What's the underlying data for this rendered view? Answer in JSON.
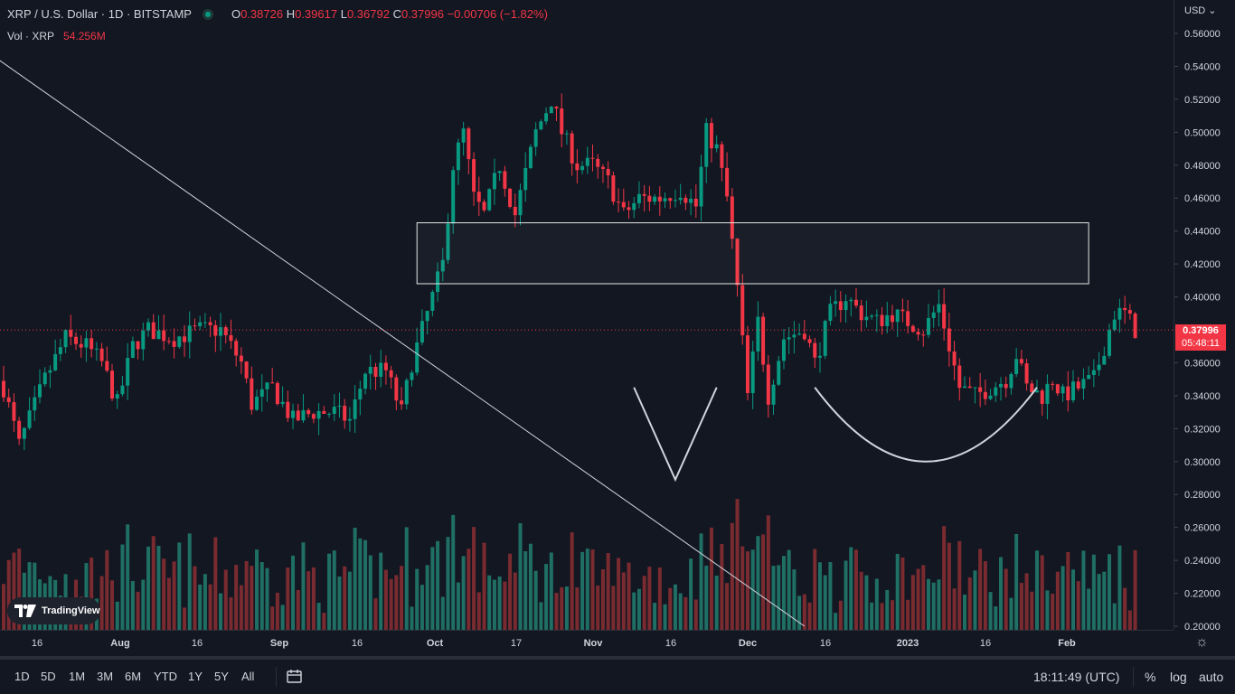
{
  "header": {
    "symbol": "XRP / U.S. Dollar · 1D · BITSTAMP",
    "o_label": "O",
    "o_value": "0.38726",
    "h_label": "H",
    "h_value": "0.39617",
    "l_label": "L",
    "l_value": "0.36792",
    "c_label": "C",
    "c_value": "0.37996",
    "change": "−0.00706 (−1.82%)"
  },
  "volume_legend": {
    "label": "Vol · XRP",
    "value": "54.256M"
  },
  "currency": "USD",
  "last_price": {
    "value": "0.37996",
    "countdown": "05:48:11"
  },
  "logo_text": "TradingView",
  "timeframes": [
    "1D",
    "5D",
    "1M",
    "3M",
    "6M",
    "YTD",
    "1Y",
    "5Y",
    "All"
  ],
  "clock": "18:11:49 (UTC)",
  "toolbar_right": {
    "percent": "%",
    "log": "log",
    "auto": "auto"
  },
  "colors": {
    "up": "#089981",
    "down": "#f23645",
    "up_vol": "#1f6f64",
    "down_vol": "#7a2b30",
    "background": "#131722"
  },
  "chart_data": {
    "type": "candlestick",
    "y_ticks": [
      "0.56000",
      "0.54000",
      "0.52000",
      "0.50000",
      "0.48000",
      "0.46000",
      "0.44000",
      "0.42000",
      "0.40000",
      "0.38000",
      "0.36000",
      "0.34000",
      "0.32000",
      "0.30000",
      "0.28000",
      "0.26000",
      "0.24000",
      "0.22000",
      "0.20000"
    ],
    "ylim": [
      0.2,
      0.56
    ],
    "x_ticks": [
      "16",
      "Aug",
      "16",
      "Sep",
      "16",
      "Oct",
      "17",
      "Nov",
      "16",
      "Dec",
      "16",
      "2023",
      "16",
      "Feb"
    ],
    "anchors": [
      {
        "i": 0,
        "c": 0.345
      },
      {
        "i": 3,
        "c": 0.31
      },
      {
        "i": 8,
        "c": 0.35
      },
      {
        "i": 12,
        "c": 0.375
      },
      {
        "i": 16,
        "c": 0.37
      },
      {
        "i": 19,
        "c": 0.36
      },
      {
        "i": 22,
        "c": 0.335
      },
      {
        "i": 25,
        "c": 0.37
      },
      {
        "i": 28,
        "c": 0.38
      },
      {
        "i": 33,
        "c": 0.375
      },
      {
        "i": 38,
        "c": 0.38
      },
      {
        "i": 42,
        "c": 0.38
      },
      {
        "i": 46,
        "c": 0.36
      },
      {
        "i": 48,
        "c": 0.335
      },
      {
        "i": 52,
        "c": 0.345
      },
      {
        "i": 56,
        "c": 0.325
      },
      {
        "i": 60,
        "c": 0.33
      },
      {
        "i": 64,
        "c": 0.33
      },
      {
        "i": 67,
        "c": 0.325
      },
      {
        "i": 70,
        "c": 0.355
      },
      {
        "i": 74,
        "c": 0.355
      },
      {
        "i": 77,
        "c": 0.33
      },
      {
        "i": 79,
        "c": 0.36
      },
      {
        "i": 82,
        "c": 0.39
      },
      {
        "i": 85,
        "c": 0.42
      },
      {
        "i": 87,
        "c": 0.48
      },
      {
        "i": 89,
        "c": 0.5
      },
      {
        "i": 91,
        "c": 0.46
      },
      {
        "i": 93,
        "c": 0.45
      },
      {
        "i": 96,
        "c": 0.48
      },
      {
        "i": 99,
        "c": 0.45
      },
      {
        "i": 103,
        "c": 0.5
      },
      {
        "i": 106,
        "c": 0.52
      },
      {
        "i": 108,
        "c": 0.5
      },
      {
        "i": 111,
        "c": 0.48
      },
      {
        "i": 114,
        "c": 0.48
      },
      {
        "i": 117,
        "c": 0.47
      },
      {
        "i": 120,
        "c": 0.45
      },
      {
        "i": 123,
        "c": 0.46
      },
      {
        "i": 127,
        "c": 0.46
      },
      {
        "i": 131,
        "c": 0.465
      },
      {
        "i": 134,
        "c": 0.455
      },
      {
        "i": 136,
        "c": 0.5
      },
      {
        "i": 138,
        "c": 0.49
      },
      {
        "i": 140,
        "c": 0.46
      },
      {
        "i": 142,
        "c": 0.405
      },
      {
        "i": 144,
        "c": 0.34
      },
      {
        "i": 146,
        "c": 0.385
      },
      {
        "i": 148,
        "c": 0.34
      },
      {
        "i": 151,
        "c": 0.375
      },
      {
        "i": 155,
        "c": 0.38
      },
      {
        "i": 157,
        "c": 0.36
      },
      {
        "i": 160,
        "c": 0.39
      },
      {
        "i": 163,
        "c": 0.4
      },
      {
        "i": 166,
        "c": 0.39
      },
      {
        "i": 169,
        "c": 0.385
      },
      {
        "i": 172,
        "c": 0.39
      },
      {
        "i": 175,
        "c": 0.385
      },
      {
        "i": 178,
        "c": 0.38
      },
      {
        "i": 181,
        "c": 0.395
      },
      {
        "i": 183,
        "c": 0.37
      },
      {
        "i": 185,
        "c": 0.345
      },
      {
        "i": 188,
        "c": 0.34
      },
      {
        "i": 191,
        "c": 0.345
      },
      {
        "i": 194,
        "c": 0.35
      },
      {
        "i": 196,
        "c": 0.365
      },
      {
        "i": 198,
        "c": 0.345
      },
      {
        "i": 201,
        "c": 0.34
      },
      {
        "i": 203,
        "c": 0.35
      },
      {
        "i": 205,
        "c": 0.34
      },
      {
        "i": 208,
        "c": 0.345
      },
      {
        "i": 211,
        "c": 0.35
      },
      {
        "i": 213,
        "c": 0.37
      },
      {
        "i": 215,
        "c": 0.39
      },
      {
        "i": 217,
        "c": 0.39
      },
      {
        "i": 219,
        "c": 0.38
      }
    ],
    "drawings": {
      "rectangle": {
        "x_start": "Sep 26",
        "x_end": "Feb 3",
        "price_top": 0.445,
        "price_bottom": 0.408
      },
      "trendline": {
        "start": "Jun 24",
        "price_start": 0.575,
        "end": "Dec 10",
        "price_end": 0.2
      },
      "v_shape": [
        {
          "x": "Nov 7",
          "price": 0.345
        },
        {
          "x": "Nov 15",
          "price": 0.289
        },
        {
          "x": "Nov 23",
          "price": 0.345
        }
      ],
      "arc": {
        "x_start": "Dec 12",
        "x_end": "Jan 24",
        "price_top": 0.345,
        "price_bottom": 0.3
      }
    }
  }
}
